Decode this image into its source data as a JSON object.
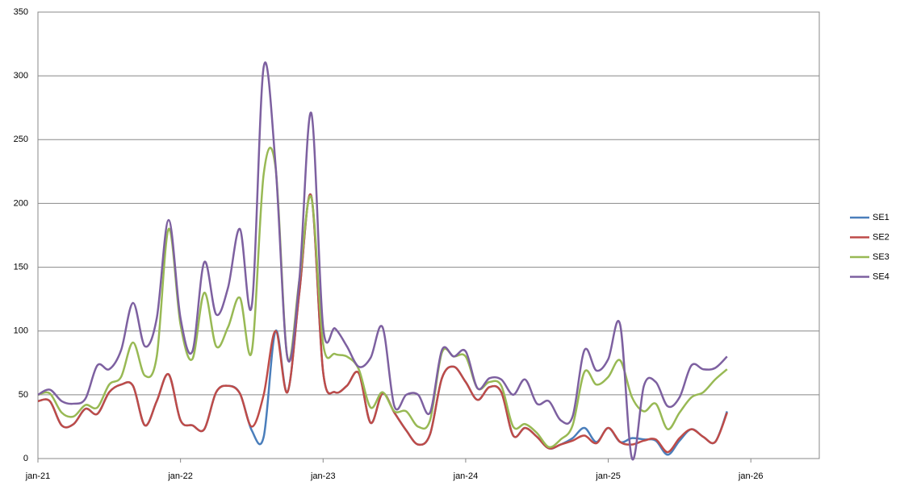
{
  "chart_data": {
    "type": "line",
    "categories": [
      "jan-21",
      null,
      null,
      null,
      null,
      null,
      null,
      null,
      null,
      null,
      null,
      null,
      "jan-22",
      null,
      null,
      null,
      null,
      null,
      null,
      null,
      null,
      null,
      null,
      null,
      "jan-23",
      null,
      null,
      null,
      null,
      null,
      null,
      null,
      null,
      null,
      null,
      null,
      "jan-24",
      null,
      null,
      null,
      null,
      null,
      null,
      null,
      null,
      null,
      null,
      null,
      "jan-25",
      null,
      null,
      null,
      null,
      null,
      null,
      null,
      null,
      null,
      null,
      null,
      "jan-26"
    ],
    "series": [
      {
        "name": "SE1",
        "color": "#4a7ebb",
        "values": [
          45,
          45,
          26,
          27,
          39,
          35,
          52,
          58,
          57,
          26,
          45,
          66,
          30,
          26,
          23,
          52,
          57,
          51,
          22,
          17,
          100,
          52,
          130,
          206,
          68,
          52,
          57,
          67,
          28,
          51,
          36,
          22,
          11,
          19,
          63,
          72,
          60,
          46,
          56,
          52,
          18,
          24,
          17,
          8,
          11,
          16,
          24,
          13,
          24,
          13,
          16,
          15,
          14,
          3,
          14,
          23,
          17,
          13,
          37,
          null,
          null
        ]
      },
      {
        "name": "SE2",
        "color": "#be4b48",
        "values": [
          45,
          45,
          26,
          27,
          39,
          35,
          52,
          58,
          57,
          26,
          45,
          66,
          30,
          26,
          23,
          52,
          57,
          51,
          25,
          50,
          100,
          52,
          130,
          206,
          68,
          52,
          57,
          67,
          28,
          51,
          36,
          22,
          11,
          19,
          63,
          72,
          60,
          46,
          56,
          52,
          18,
          24,
          17,
          8,
          11,
          14,
          18,
          12,
          24,
          13,
          11,
          14,
          15,
          5,
          16,
          23,
          17,
          13,
          36,
          null,
          null
        ]
      },
      {
        "name": "SE3",
        "color": "#98b954",
        "values": [
          50,
          51,
          36,
          33,
          42,
          40,
          58,
          64,
          91,
          65,
          80,
          180,
          105,
          78,
          130,
          88,
          103,
          126,
          84,
          223,
          228,
          79,
          140,
          205,
          90,
          82,
          80,
          70,
          40,
          52,
          37,
          37,
          25,
          30,
          83,
          80,
          80,
          55,
          60,
          57,
          25,
          27,
          20,
          9,
          15,
          26,
          68,
          58,
          64,
          77,
          48,
          37,
          43,
          23,
          36,
          48,
          52,
          62,
          70,
          null,
          null
        ]
      },
      {
        "name": "SE4",
        "color": "#7d60a0",
        "values": [
          50,
          54,
          45,
          43,
          47,
          73,
          70,
          85,
          122,
          88,
          110,
          187,
          110,
          84,
          154,
          113,
          134,
          180,
          120,
          307,
          230,
          79,
          140,
          271,
          103,
          102,
          88,
          72,
          79,
          103,
          41,
          50,
          50,
          36,
          85,
          80,
          84,
          55,
          63,
          62,
          50,
          62,
          43,
          45,
          30,
          33,
          85,
          69,
          78,
          105,
          0,
          57,
          60,
          41,
          48,
          73,
          70,
          71,
          80,
          null,
          null
        ]
      }
    ],
    "ylim": [
      0,
      350
    ],
    "yticks": [
      0,
      50,
      100,
      150,
      200,
      250,
      300,
      350
    ],
    "grid": true,
    "legend": "right"
  }
}
